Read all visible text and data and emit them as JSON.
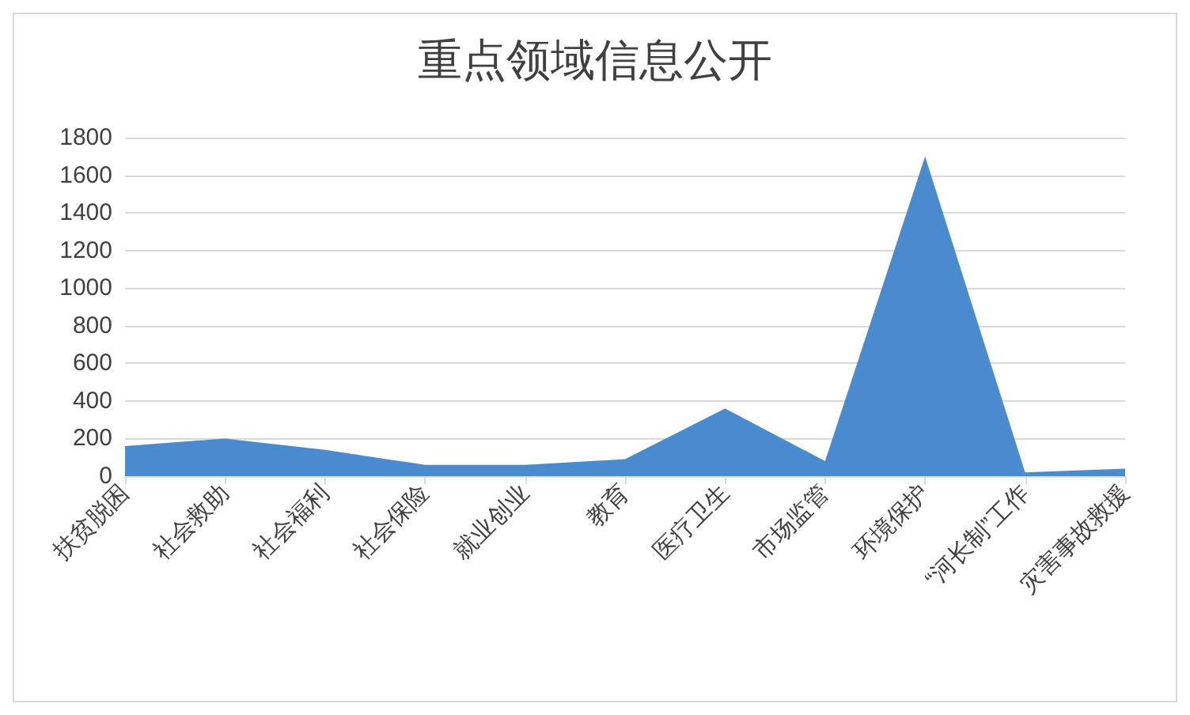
{
  "chart_data": {
    "type": "area",
    "title": "重点领域信息公开",
    "categories": [
      "扶贫脱困",
      "社会救助",
      "社会福利",
      "社会保险",
      "就业创业",
      "教育",
      "医疗卫生",
      "市场监管",
      "环境保护",
      "“河长制”工作",
      "灾害事故救援"
    ],
    "values": [
      160,
      200,
      140,
      60,
      60,
      90,
      360,
      80,
      1700,
      20,
      40
    ],
    "color": "#4a8bcf",
    "ylim": [
      0,
      1800
    ],
    "yticks": [
      0,
      200,
      400,
      600,
      800,
      1000,
      1200,
      1400,
      1600,
      1800
    ],
    "grid": "y"
  }
}
